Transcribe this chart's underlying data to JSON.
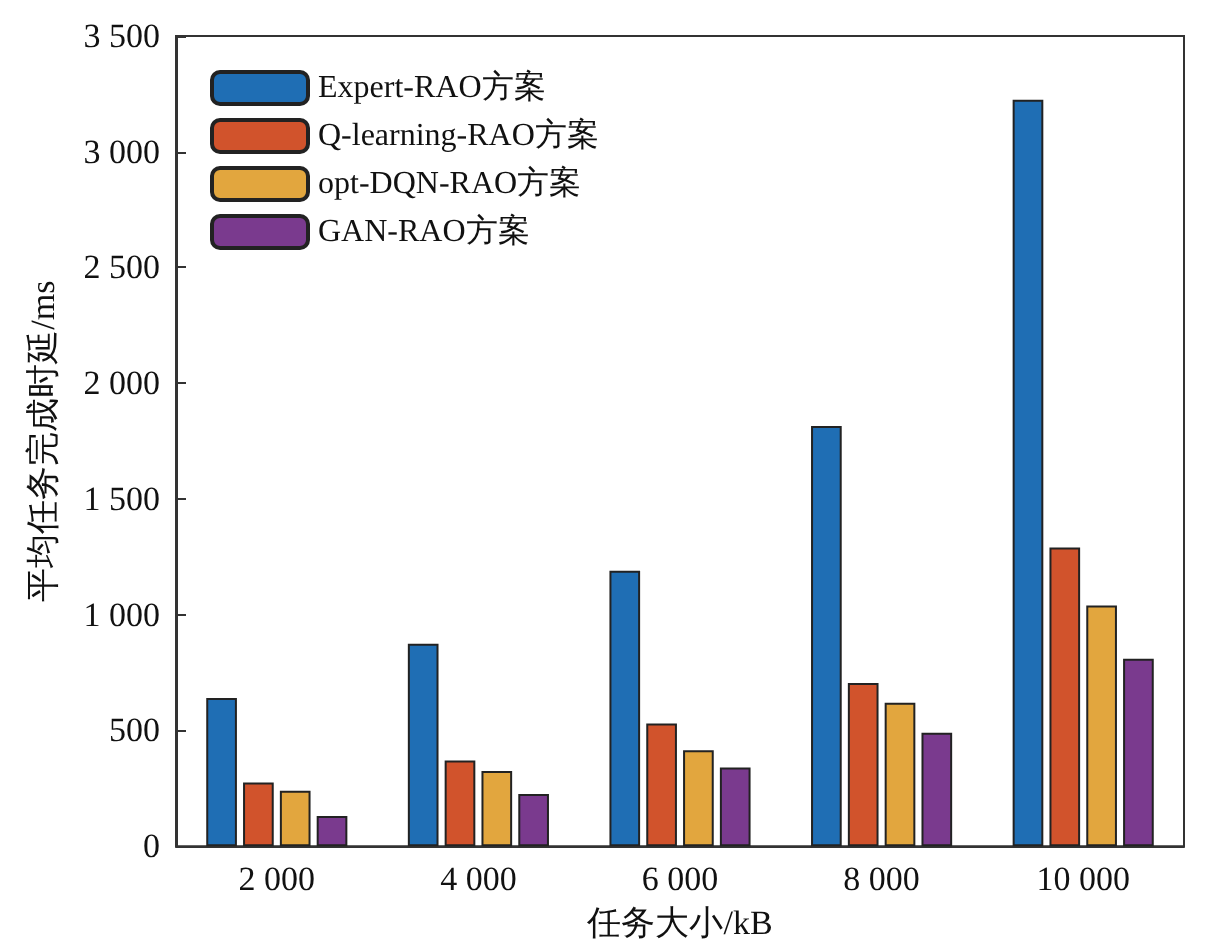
{
  "chart_data": {
    "type": "bar",
    "xlabel": "任务大小/kB",
    "ylabel": "平均任务完成时延/ms",
    "categories": [
      "2 000",
      "4 000",
      "6 000",
      "8 000",
      "10 000"
    ],
    "series": [
      {
        "name": "Expert-RAO方案",
        "color": "#1f6eb4",
        "values": [
          640,
          875,
          1190,
          1815,
          3225
        ]
      },
      {
        "name": "Q-learning-RAO方案",
        "color": "#d1532c",
        "values": [
          275,
          370,
          530,
          705,
          1290
        ]
      },
      {
        "name": "opt-DQN-RAO方案",
        "color": "#e2a63e",
        "values": [
          240,
          325,
          415,
          620,
          1040
        ]
      },
      {
        "name": "GAN-RAO方案",
        "color": "#7a3a8e",
        "values": [
          130,
          225,
          340,
          490,
          810
        ]
      }
    ],
    "ylim": [
      0,
      3500
    ],
    "yticks": [
      0,
      500,
      {
        "value": 1000,
        "label": "1 000"
      },
      {
        "value": 1500,
        "label": "1 500"
      },
      {
        "value": 2000,
        "label": "2 000"
      },
      {
        "value": 2500,
        "label": "2 500"
      },
      {
        "value": 3000,
        "label": "3 000"
      },
      {
        "value": 3500,
        "label": "3 500"
      }
    ],
    "legend": "top left",
    "grid": false
  }
}
